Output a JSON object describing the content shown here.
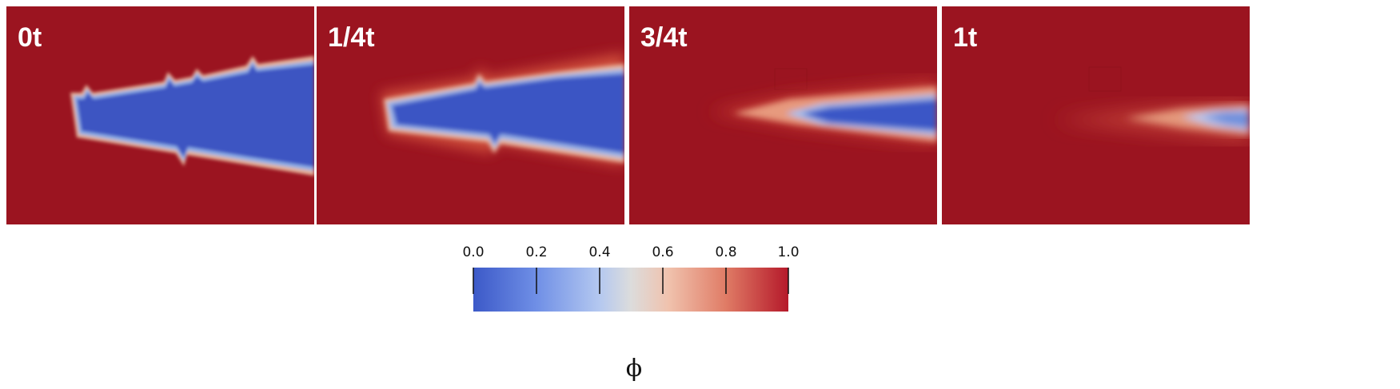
{
  "panels": [
    {
      "label": "0t"
    },
    {
      "label": "1/4t"
    },
    {
      "label": "3/4t"
    },
    {
      "label": "1t"
    }
  ],
  "colorbar": {
    "title": "ϕ",
    "ticks": [
      "0.0",
      "0.2",
      "0.4",
      "0.6",
      "0.8",
      "1.0"
    ],
    "colors": {
      "low": "#3c59c8",
      "mid": "#dcdcdc",
      "high": "#b5192a",
      "background": "#9b1420"
    }
  }
}
